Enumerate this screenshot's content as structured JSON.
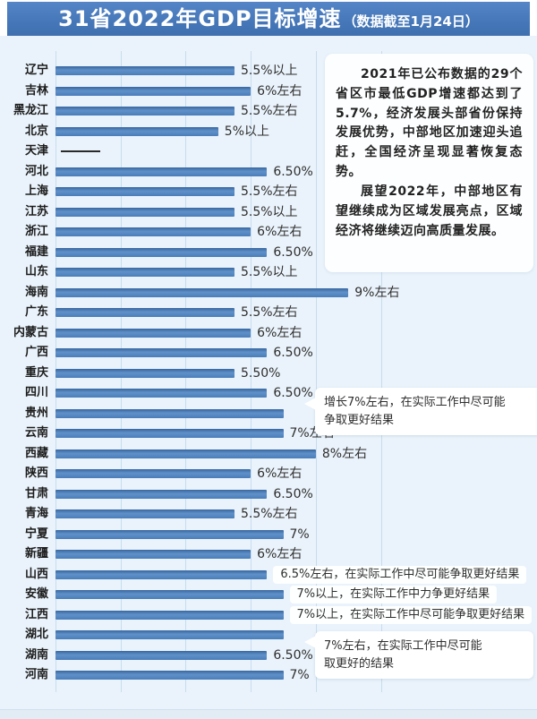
{
  "header": {
    "title": "31省2022年GDP目标增速",
    "subtitle": "（数据截至1月24日）",
    "bg_color": "#4678ba"
  },
  "info_box": {
    "para1": "2021年已公布数据的29个省区市最低GDP增速都达到了5.7%，经济发展头部省份保持发展优势，中部地区加速迎头追赶，全国经济呈现显著恢复态势。",
    "para2": "展望2022年，中部地区有望继续成为区域发展亮点，区域经济将继续迈向高质量发展。"
  },
  "chart_data": {
    "type": "bar",
    "orientation": "horizontal",
    "title": "31省2022年GDP目标增速（数据截至1月24日）",
    "value_unit": "percent",
    "xlim": [
      0,
      10
    ],
    "gridline_interval_percent": 2,
    "grid": true,
    "bar_color": "#4f81bd",
    "page_bg_color": "#eaf3fb",
    "rows": [
      {
        "province": "辽宁",
        "value": 5.5,
        "label": "5.5%以上"
      },
      {
        "province": "吉林",
        "value": 6,
        "label": "6%左右"
      },
      {
        "province": "黑龙江",
        "value": 5.5,
        "label": "5.5%左右"
      },
      {
        "province": "北京",
        "value": 5,
        "label": "5%以上"
      },
      {
        "province": "天津",
        "value": null,
        "label": ""
      },
      {
        "province": "河北",
        "value": 6.5,
        "label": "6.50%"
      },
      {
        "province": "上海",
        "value": 5.5,
        "label": "5.5%左右"
      },
      {
        "province": "江苏",
        "value": 5.5,
        "label": "5.5%以上"
      },
      {
        "province": "浙江",
        "value": 6,
        "label": "6%左右"
      },
      {
        "province": "福建",
        "value": 6.5,
        "label": "6.50%"
      },
      {
        "province": "山东",
        "value": 5.5,
        "label": "5.5%以上"
      },
      {
        "province": "海南",
        "value": 9,
        "label": "9%左右"
      },
      {
        "province": "广东",
        "value": 5.5,
        "label": "5.5%左右"
      },
      {
        "province": "内蒙古",
        "value": 6,
        "label": "6%左右"
      },
      {
        "province": "广西",
        "value": 6.5,
        "label": "6.50%"
      },
      {
        "province": "重庆",
        "value": 5.5,
        "label": "5.50%"
      },
      {
        "province": "四川",
        "value": 6.5,
        "label": "6.50%"
      },
      {
        "province": "贵州",
        "value": 7,
        "label": ""
      },
      {
        "province": "云南",
        "value": 7,
        "label": "7%左右"
      },
      {
        "province": "西藏",
        "value": 8,
        "label": "8%左右"
      },
      {
        "province": "陕西",
        "value": 6,
        "label": "6%左右"
      },
      {
        "province": "甘肃",
        "value": 6.5,
        "label": "6.50%"
      },
      {
        "province": "青海",
        "value": 5.5,
        "label": "5.5%左右"
      },
      {
        "province": "宁夏",
        "value": 7,
        "label": "7%"
      },
      {
        "province": "新疆",
        "value": 6,
        "label": "6%左右"
      },
      {
        "province": "山西",
        "value": 6.5,
        "label": "6.5%左右，在实际工作中尽可能争取更好结果",
        "boxed": true
      },
      {
        "province": "安徽",
        "value": 7,
        "label": "7%以上，在实际工作中力争更好结果",
        "boxed": true
      },
      {
        "province": "江西",
        "value": 7,
        "label": "7%以上，在实际工作中尽可能争取更好结果",
        "boxed": true
      },
      {
        "province": "湖北",
        "value": 7,
        "label": ""
      },
      {
        "province": "湖南",
        "value": 6.5,
        "label": "6.50%"
      },
      {
        "province": "河南",
        "value": 7,
        "label": "7%"
      }
    ],
    "no_data_rows": [
      "天津"
    ],
    "annotations": {
      "guizhou": {
        "target": "贵州",
        "lines": [
          "增长7%左右，在实际工作中尽可能",
          "争取更好结果"
        ]
      },
      "hubei": {
        "target": "湖北",
        "lines": [
          "7%左右，在实际工作中尽可能",
          "取更好的结果"
        ]
      }
    }
  }
}
